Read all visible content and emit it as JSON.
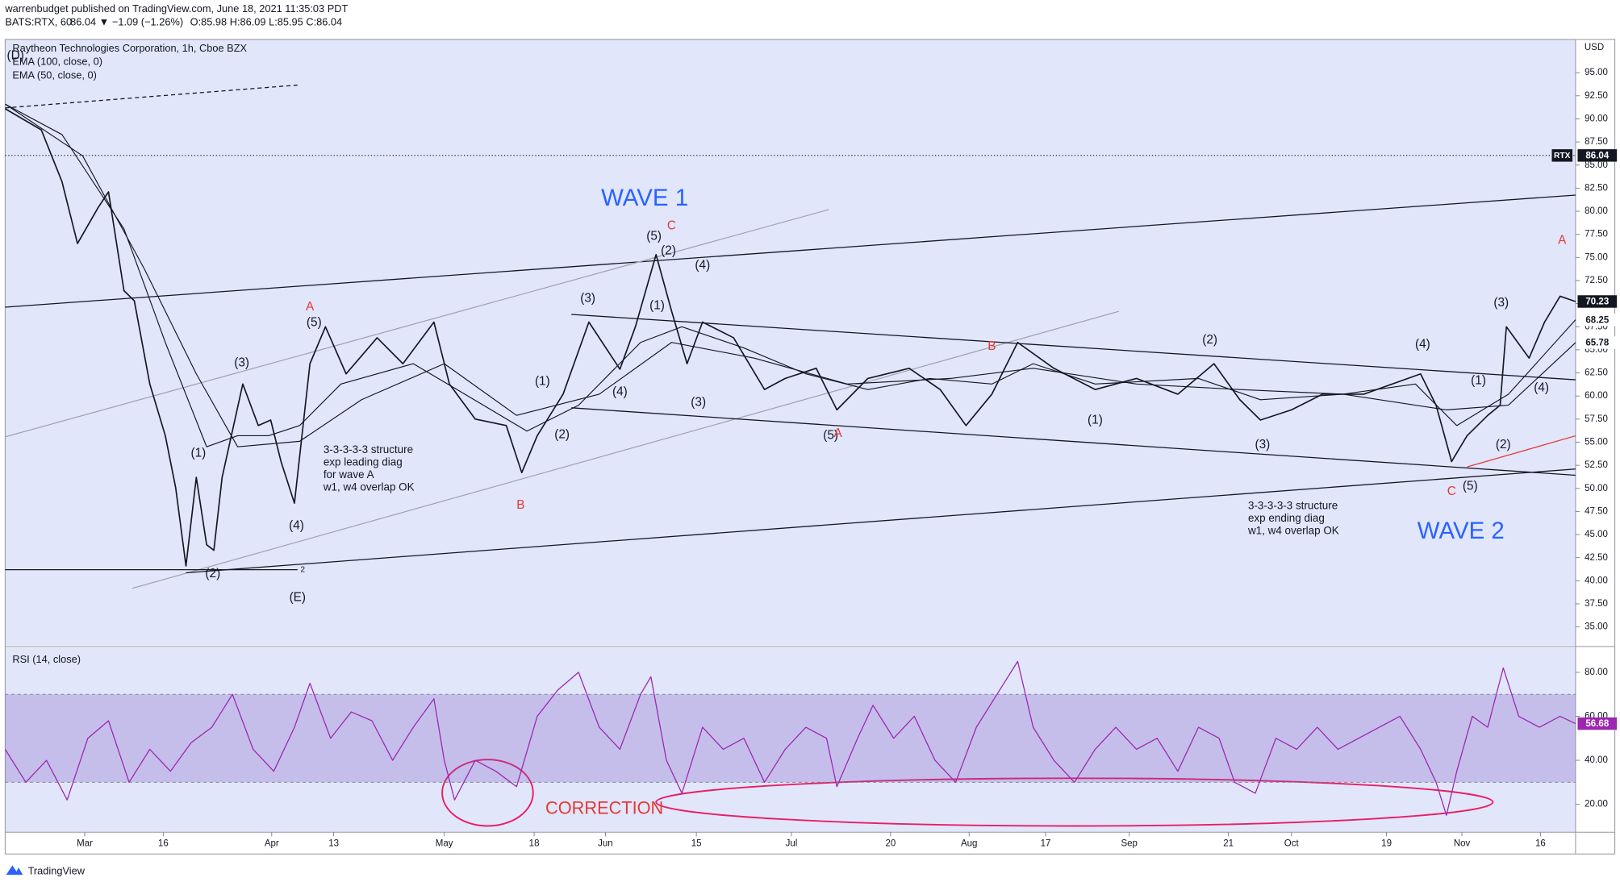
{
  "header": {
    "byline": "warrenbudget published on TradingView.com, June 18, 2021 11:35:03 PDT",
    "symbol": "BATS:RTX, 60",
    "quote": "86.04 ▼ −1.09 (−1.26%)",
    "ohlc": "O:85.98 H:86.09 L:85.95 C:86.04"
  },
  "footer": {
    "brand": "TradingView"
  },
  "chart_data": [
    {
      "type": "line",
      "title": "Raytheon Technologies Corporation, 1h, Cboe BZX",
      "currency": "USD",
      "xlim": [
        0,
        152
      ],
      "ylim": [
        33,
        98.6
      ],
      "xticks": [
        {
          "value": 7.7,
          "label": "Mar"
        },
        {
          "value": 15.3,
          "label": "16"
        },
        {
          "value": 25.8,
          "label": "Apr"
        },
        {
          "value": 31.8,
          "label": "13"
        },
        {
          "value": 42.5,
          "label": "May"
        },
        {
          "value": 51.2,
          "label": "18"
        },
        {
          "value": 58.1,
          "label": "Jun"
        },
        {
          "value": 66.9,
          "label": "15"
        },
        {
          "value": 76.1,
          "label": "Jul"
        },
        {
          "value": 85.7,
          "label": "20"
        },
        {
          "value": 93.3,
          "label": "Aug"
        },
        {
          "value": 100.7,
          "label": "17"
        },
        {
          "value": 108.8,
          "label": "Sep"
        },
        {
          "value": 118.4,
          "label": "21"
        },
        {
          "value": 124.5,
          "label": "Oct"
        },
        {
          "value": 133.7,
          "label": "19"
        },
        {
          "value": 141.0,
          "label": "Nov"
        },
        {
          "value": 148.6,
          "label": "16"
        }
      ],
      "yticks": [
        {
          "value": 35,
          "label": "35.00"
        },
        {
          "value": 37.5,
          "label": "37.50"
        },
        {
          "value": 40,
          "label": "40.00"
        },
        {
          "value": 42.5,
          "label": "42.50"
        },
        {
          "value": 45,
          "label": "45.00"
        },
        {
          "value": 47.5,
          "label": "47.50"
        },
        {
          "value": 50,
          "label": "50.00"
        },
        {
          "value": 52.5,
          "label": "52.50"
        },
        {
          "value": 55,
          "label": "55.00"
        },
        {
          "value": 57.5,
          "label": "57.50"
        },
        {
          "value": 60,
          "label": "60.00"
        },
        {
          "value": 62.5,
          "label": "62.50"
        },
        {
          "value": 65,
          "label": "65.00"
        },
        {
          "value": 67.5,
          "label": "67.50"
        },
        {
          "value": 70,
          "label": "70.00"
        },
        {
          "value": 72.5,
          "label": "72.50"
        },
        {
          "value": 75,
          "label": "75.00"
        },
        {
          "value": 77.5,
          "label": "77.50"
        },
        {
          "value": 80,
          "label": "80.00"
        },
        {
          "value": 82.5,
          "label": "82.50"
        },
        {
          "value": 85,
          "label": "85.00"
        },
        {
          "value": 87.5,
          "label": "87.50"
        },
        {
          "value": 90,
          "label": "90.00"
        },
        {
          "value": 92.5,
          "label": "92.50"
        },
        {
          "value": 95,
          "label": "95.00"
        }
      ],
      "grid": false,
      "price_line": {
        "name": "RTX",
        "value": 86.04
      },
      "series": [
        {
          "color": "#131722",
          "width": 1.3,
          "x": [
            0,
            3.5,
            5.5,
            7,
            9,
            10,
            11.5,
            12.5,
            14,
            15.5,
            16.5,
            17.5,
            18.5,
            19.5,
            20.2,
            21,
            23,
            24.5,
            25.7,
            26.7,
            28,
            29.5,
            31,
            33,
            36,
            38.5,
            41.5,
            43,
            45.5,
            48.5,
            50,
            51.5,
            54,
            56.5,
            59.5,
            61,
            63,
            64.5,
            66,
            67.5,
            70.5,
            73.5,
            75.5,
            78.5,
            80.5,
            83.5,
            87.5,
            90.5,
            93,
            95.5,
            98,
            101.5,
            105.5,
            109.5,
            113.5,
            117,
            119.5,
            121.5,
            124.5,
            127.5,
            131.5,
            137,
            138.5,
            140,
            141.5,
            143.5,
            144.7,
            145.3,
            147.5,
            149,
            150.5,
            152
          ],
          "values": [
            91.1,
            88.8,
            83.2,
            76.5,
            80.4,
            82.1,
            71.4,
            70.3,
            61.3,
            55.7,
            50.1,
            41.6,
            51.2,
            43.9,
            43.3,
            51.2,
            61.3,
            56.8,
            57.4,
            52.9,
            48.4,
            63.5,
            67.5,
            62.4,
            66.3,
            63.5,
            68.0,
            61.3,
            57.5,
            56.8,
            51.7,
            55.7,
            60.2,
            68.0,
            62.9,
            67.5,
            75.3,
            69.2,
            63.5,
            68.0,
            66.3,
            60.7,
            61.9,
            63.0,
            58.5,
            61.9,
            63.0,
            60.7,
            56.8,
            60.2,
            65.8,
            63.0,
            60.7,
            61.9,
            60.2,
            63.5,
            59.6,
            57.4,
            58.5,
            60.2,
            60.2,
            62.4,
            59.0,
            52.9,
            55.7,
            57.9,
            59.0,
            67.5,
            64.1,
            68.0,
            70.8,
            70.23
          ]
        },
        {
          "name": "EMA (100, close, 0)",
          "color": "#131722",
          "width": 0.9,
          "x": [
            0,
            7.5,
            13.5,
            18.5,
            22.5,
            28.5,
            34.5,
            42.5,
            49.5,
            57.5,
            64.5,
            72.5,
            81.5,
            91.5,
            99.5,
            109.5,
            119.5,
            129.5,
            139.5,
            145.5,
            152
          ],
          "values": [
            91.6,
            86.0,
            73.7,
            62.4,
            54.5,
            55.1,
            59.6,
            63.5,
            57.9,
            60.2,
            65.8,
            64.1,
            61.3,
            61.9,
            63.0,
            61.3,
            60.7,
            60.2,
            58.5,
            59.0,
            65.78
          ]
        },
        {
          "name": "EMA (50, close, 0)",
          "color": "#131722",
          "width": 0.9,
          "x": [
            0,
            5.5,
            11.5,
            15.5,
            19.5,
            22.5,
            25.5,
            28.5,
            32.5,
            39.5,
            44.5,
            50.5,
            55.5,
            61.5,
            65.5,
            71.5,
            77.5,
            83.5,
            89.5,
            95.5,
            99.5,
            105.5,
            115.5,
            121.5,
            129.5,
            136.5,
            140.5,
            145.5,
            152
          ],
          "values": [
            91.6,
            88.3,
            78.1,
            65.8,
            54.5,
            55.7,
            55.7,
            56.8,
            61.3,
            63.5,
            60.2,
            56.2,
            59.0,
            65.8,
            67.5,
            65.2,
            62.4,
            60.7,
            61.9,
            61.3,
            63.5,
            61.3,
            61.9,
            59.6,
            60.2,
            61.3,
            56.8,
            60.2,
            68.25
          ]
        }
      ],
      "annotations": [
        {
          "text": "(D)",
          "color": "#131722"
        },
        {
          "text": "A",
          "color": "#e53935"
        },
        {
          "text": "(5)",
          "color": "#131722"
        },
        {
          "text": "(3)",
          "color": "#131722"
        },
        {
          "text": "(1)",
          "color": "#131722"
        },
        {
          "text": "(4)",
          "color": "#131722"
        },
        {
          "text": "(2)",
          "color": "#131722"
        },
        {
          "text": "(E)",
          "color": "#131722"
        },
        {
          "text": "2",
          "color": "#131722"
        },
        {
          "text": "3-3-3-3-3 structure",
          "color": "#131722"
        },
        {
          "text": "exp leading diag",
          "color": "#131722"
        },
        {
          "text": "for wave A",
          "color": "#131722"
        },
        {
          "text": "w1, w4 overlap OK",
          "color": "#131722"
        },
        {
          "text": "WAVE 1",
          "color": "#2962ff"
        },
        {
          "text": "C",
          "color": "#e53935"
        },
        {
          "text": "(5)",
          "color": "#131722"
        },
        {
          "text": "(2)",
          "color": "#131722"
        },
        {
          "text": "(4)",
          "color": "#131722"
        },
        {
          "text": "(3)",
          "color": "#131722"
        },
        {
          "text": "(1)",
          "color": "#131722"
        },
        {
          "text": "(1)",
          "color": "#131722"
        },
        {
          "text": "(4)",
          "color": "#131722"
        },
        {
          "text": "(3)",
          "color": "#131722"
        },
        {
          "text": "(2)",
          "color": "#131722"
        },
        {
          "text": "B",
          "color": "#e53935"
        },
        {
          "text": "(5)",
          "color": "#131722"
        },
        {
          "text": "A",
          "color": "#e53935"
        },
        {
          "text": "B",
          "color": "#e53935"
        },
        {
          "text": "(2)",
          "color": "#131722"
        },
        {
          "text": "(1)",
          "color": "#131722"
        },
        {
          "text": "(3)",
          "color": "#131722"
        },
        {
          "text": "(4)",
          "color": "#131722"
        },
        {
          "text": "(3)",
          "color": "#131722"
        },
        {
          "text": "(1)",
          "color": "#131722"
        },
        {
          "text": "(4)",
          "color": "#131722"
        },
        {
          "text": "(2)",
          "color": "#131722"
        },
        {
          "text": "(5)",
          "color": "#131722"
        },
        {
          "text": "C",
          "color": "#e53935"
        },
        {
          "text": "A",
          "color": "#e53935"
        },
        {
          "text": "3-3-3-3-3 structure",
          "color": "#131722"
        },
        {
          "text": "exp ending diag",
          "color": "#131722"
        },
        {
          "text": "w1, w4 overlap OK",
          "color": "#131722"
        },
        {
          "text": "WAVE 2",
          "color": "#2962ff"
        }
      ]
    },
    {
      "type": "line",
      "title": "RSI (14, close)",
      "xlim": [
        0,
        152
      ],
      "ylim": [
        7.3,
        91.3
      ],
      "yticks": [
        {
          "value": 20,
          "label": "20.00"
        },
        {
          "value": 40,
          "label": "40.00"
        },
        {
          "value": 60,
          "label": "60.00"
        },
        {
          "value": 80,
          "label": "80.00"
        }
      ],
      "band": [
        30,
        70
      ],
      "band_color": "#7e57c2",
      "series": [
        {
          "color": "#9c27b0",
          "width": 1,
          "x": [
            0,
            2,
            4,
            6,
            8,
            10,
            12,
            14,
            16,
            18,
            20,
            22,
            24,
            26,
            28,
            29.5,
            31.5,
            33.5,
            35.5,
            37.5,
            39.5,
            41.5,
            42.5,
            43.5,
            45.5,
            47.5,
            49.5,
            51.5,
            53.5,
            55.5,
            57.5,
            59.5,
            61.5,
            62.5,
            64,
            65.5,
            67.5,
            69.5,
            71.5,
            73.5,
            75.5,
            77.5,
            79.5,
            80.5,
            82.5,
            84,
            86,
            88,
            90,
            92,
            94,
            96,
            98,
            99.5,
            101.5,
            103.5,
            105.5,
            107.5,
            109.5,
            111.5,
            113.5,
            115.5,
            117.5,
            119,
            121,
            123,
            125,
            127,
            129,
            131,
            133,
            135,
            137,
            138.5,
            139.5,
            140.5,
            142,
            143.5,
            145,
            146.5,
            148.5,
            150.5,
            152
          ],
          "values": [
            45,
            30,
            40,
            22,
            50,
            58,
            30,
            45,
            35,
            48,
            55,
            70,
            45,
            35,
            55,
            75,
            50,
            62,
            58,
            40,
            55,
            68,
            40,
            22,
            40,
            35,
            28,
            60,
            72,
            80,
            55,
            45,
            70,
            78,
            40,
            25,
            55,
            45,
            50,
            30,
            45,
            55,
            50,
            28,
            50,
            65,
            50,
            60,
            40,
            30,
            55,
            70,
            85,
            55,
            40,
            30,
            45,
            55,
            45,
            50,
            35,
            55,
            50,
            30,
            25,
            50,
            45,
            55,
            45,
            50,
            55,
            60,
            45,
            30,
            15,
            35,
            60,
            55,
            82,
            60,
            55,
            60,
            56.68
          ]
        }
      ],
      "annotations": [
        {
          "text": "CORRECTION",
          "color": "#e53935"
        }
      ]
    }
  ]
}
